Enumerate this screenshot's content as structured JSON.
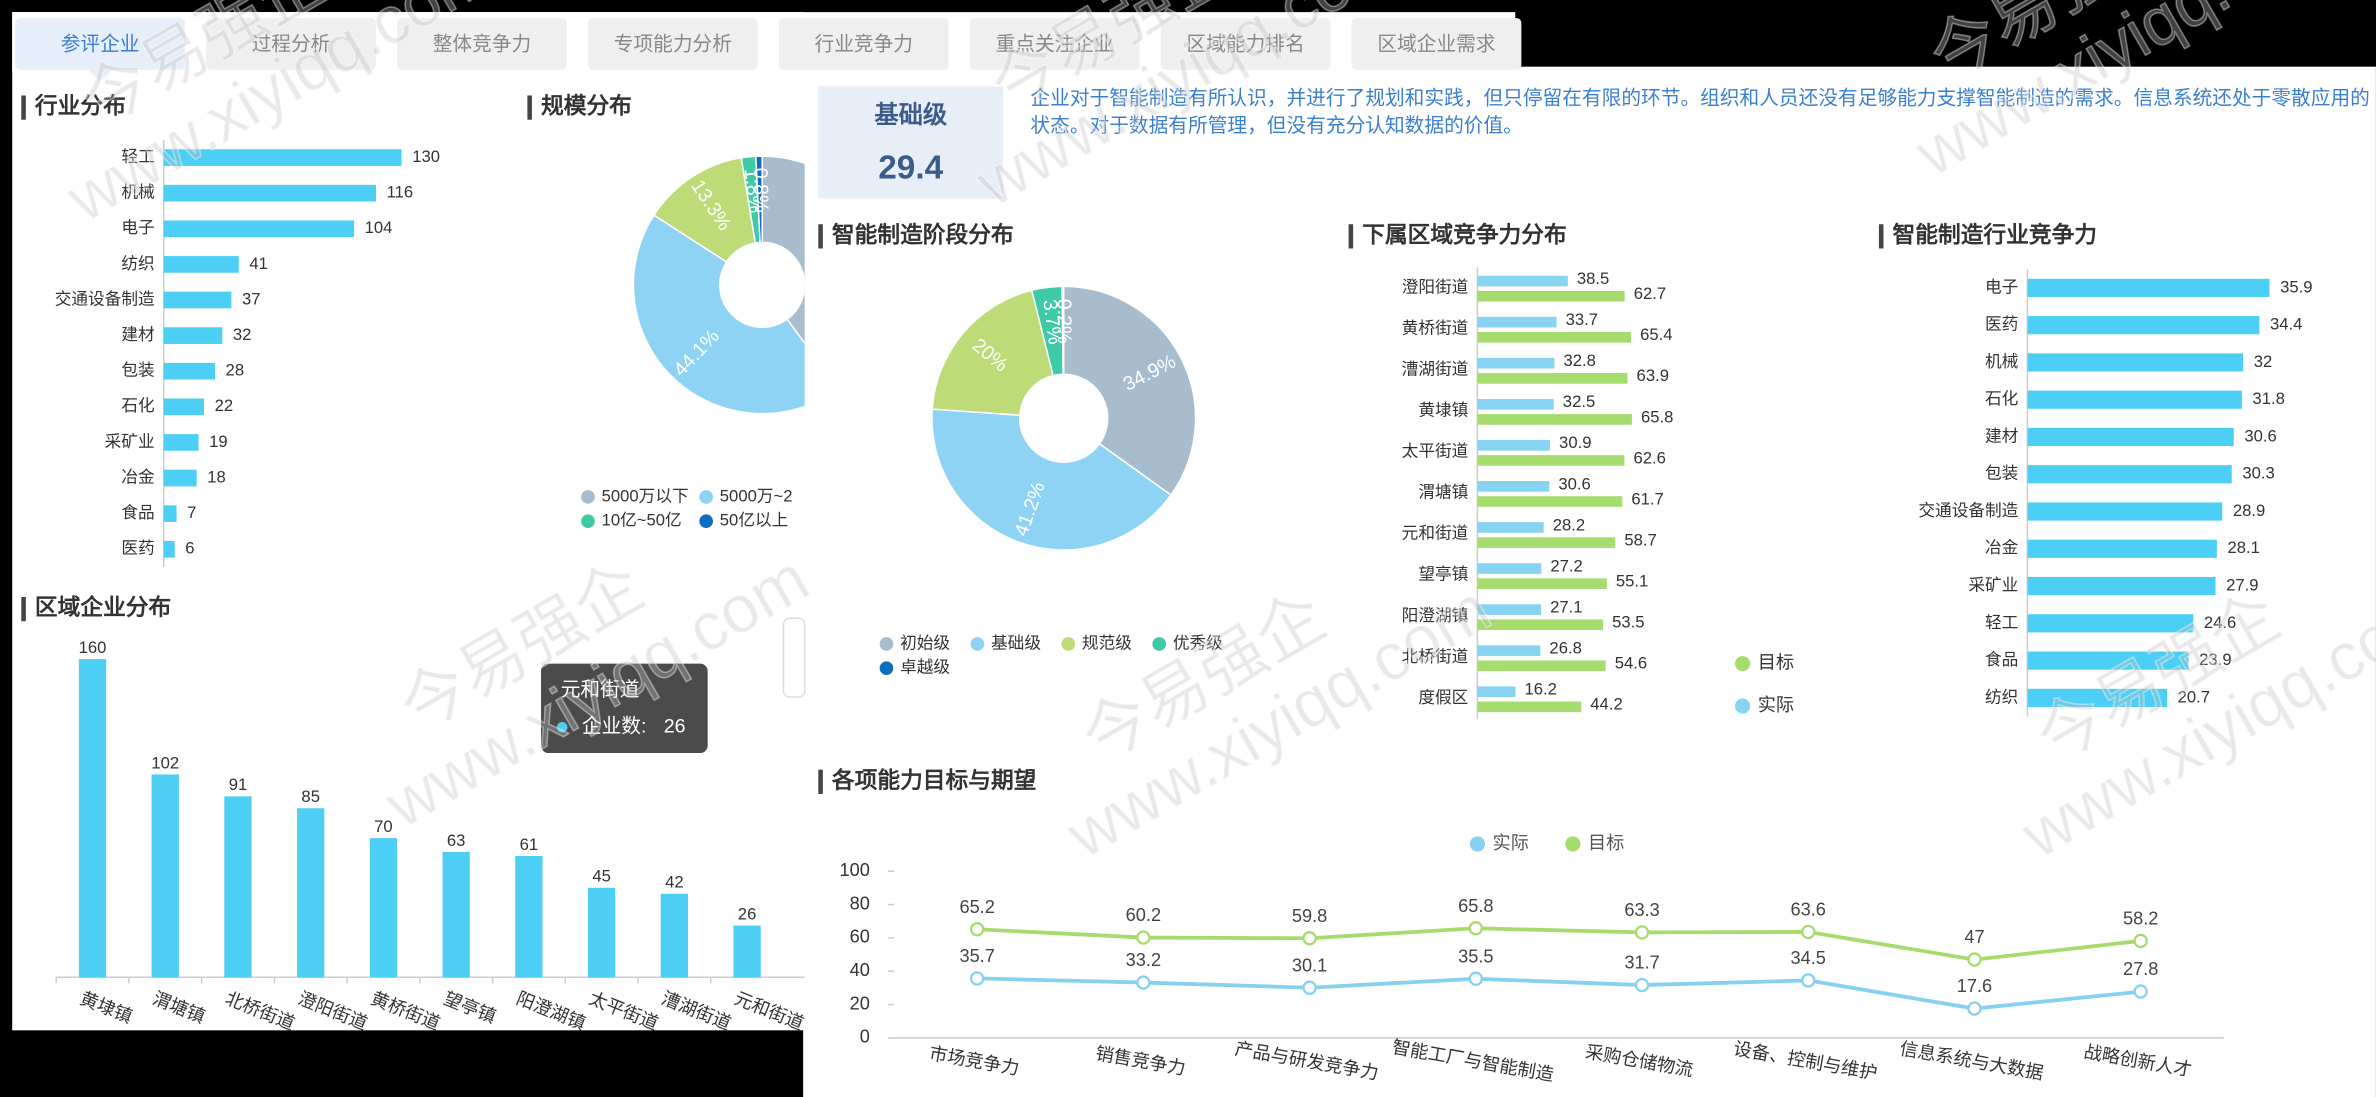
{
  "tabs": [
    "参评企业",
    "过程分析",
    "整体竞争力",
    "专项能力分析",
    "行业竞争力",
    "重点关注企业",
    "区域能力排名",
    "区域企业需求"
  ],
  "watermark": [
    "今易强企",
    "www.xiyiqq.com"
  ],
  "level": {
    "name": "基础级",
    "score": 29.4,
    "description": "企业对于智能制造有所认识，并进行了规划和实践，但只停留在有限的环节。组织和人员还没有足够能力支撑智能制造的需求。信息系统还处于零散应用的状态。对于数据有所管理，但没有充分认知数据的价值。"
  },
  "chart_data": [
    {
      "type": "bar",
      "orientation": "horizontal",
      "title": "行业分布",
      "categories": [
        "轻工",
        "机械",
        "电子",
        "纺织",
        "交通设备制造",
        "建材",
        "包装",
        "石化",
        "采矿业",
        "冶金",
        "食品",
        "医药"
      ],
      "values": [
        130,
        116,
        104,
        41,
        37,
        32,
        28,
        22,
        19,
        18,
        7,
        6
      ],
      "color": "#4dcff5",
      "xlim": [
        0,
        130
      ]
    },
    {
      "type": "pie",
      "title": "规模分布",
      "categories": [
        "5000万以下",
        "5000万~2",
        null,
        "10亿~50亿",
        "50亿以上"
      ],
      "values": [
        40.0,
        44.1,
        13.3,
        1.8,
        0.8
      ],
      "value_labels": [
        null,
        "44.1%",
        "13.3%",
        "1.8%",
        "0.8%"
      ],
      "colors": [
        "#a7bccd",
        "#8fd3f4",
        "#bddc78",
        "#3ec9a7",
        "#0c6ebd"
      ]
    },
    {
      "type": "bar",
      "orientation": "vertical",
      "title": "区域企业分布",
      "categories": [
        "黄埭镇",
        "渭塘镇",
        "北桥街道",
        "澄阳街道",
        "黄桥街道",
        "望亭镇",
        "阳澄湖镇",
        "太平街道",
        "漕湖街道",
        "元和街道"
      ],
      "values": [
        160,
        102,
        91,
        85,
        70,
        63,
        61,
        45,
        42,
        26
      ],
      "color": "#4dcff5",
      "ylim": [
        0,
        160
      ],
      "tooltip": {
        "label": "企业数:"
      }
    },
    {
      "type": "pie",
      "title": "智能制造阶段分布",
      "categories": [
        "初始级",
        "基础级",
        "规范级",
        "优秀级",
        "卓越级"
      ],
      "values": [
        34.9,
        41.2,
        20,
        3.7,
        0.2
      ],
      "value_labels": [
        "34.9%",
        "41.2%",
        "20%",
        "3.7%",
        "0.2%"
      ],
      "colors": [
        "#a7bccd",
        "#8fd3f4",
        "#bddc78",
        "#3ec9a7",
        "#0c6ebd"
      ]
    },
    {
      "type": "bar",
      "orientation": "horizontal",
      "title": "下属区域竞争力分布",
      "categories": [
        "澄阳街道",
        "黄桥街道",
        "漕湖街道",
        "黄埭镇",
        "太平街道",
        "渭塘镇",
        "元和街道",
        "望亭镇",
        "阳澄湖镇",
        "北桥街道",
        "度假区"
      ],
      "series": [
        {
          "name": "实际",
          "color": "#86d3f2",
          "values": [
            38.5,
            33.7,
            32.8,
            32.5,
            30.9,
            30.6,
            28.2,
            27.2,
            27.1,
            26.8,
            16.2
          ]
        },
        {
          "name": "目标",
          "color": "#a6dc6e",
          "values": [
            62.7,
            65.4,
            63.9,
            65.8,
            62.6,
            61.7,
            58.7,
            55.1,
            53.5,
            54.6,
            44.2
          ]
        }
      ],
      "xlim": [
        0,
        100
      ]
    },
    {
      "type": "bar",
      "orientation": "horizontal",
      "title": "智能制造行业竞争力",
      "categories": [
        "电子",
        "医药",
        "机械",
        "石化",
        "建材",
        "包装",
        "交通设备制造",
        "冶金",
        "采矿业",
        "轻工",
        "食品",
        "纺织"
      ],
      "values": [
        35.9,
        34.4,
        32,
        31.8,
        30.6,
        30.3,
        28.9,
        28.1,
        27.9,
        24.6,
        23.9,
        20.7
      ],
      "color": "#4dcff5",
      "xlim": [
        0,
        40
      ]
    },
    {
      "type": "line",
      "title": "各项能力目标与期望",
      "categories": [
        "市场竞争力",
        "销售竞争力",
        "产品与研发竞争力",
        "智能工厂与智能制造",
        "采购仓储物流",
        "设备、控制与维护",
        "信息系统与大数据",
        "战略创新人才"
      ],
      "series": [
        {
          "name": "实际",
          "color": "#86d0f0",
          "values": [
            35.7,
            33.2,
            30.1,
            35.5,
            31.7,
            34.5,
            17.6,
            27.8
          ]
        },
        {
          "name": "目标",
          "color": "#a6dc6e",
          "values": [
            65.2,
            60.2,
            59.8,
            65.8,
            63.3,
            63.6,
            47,
            58.2
          ]
        }
      ],
      "ylim": [
        0,
        100
      ],
      "yticks": [
        0,
        20,
        40,
        60,
        80,
        100
      ]
    }
  ]
}
